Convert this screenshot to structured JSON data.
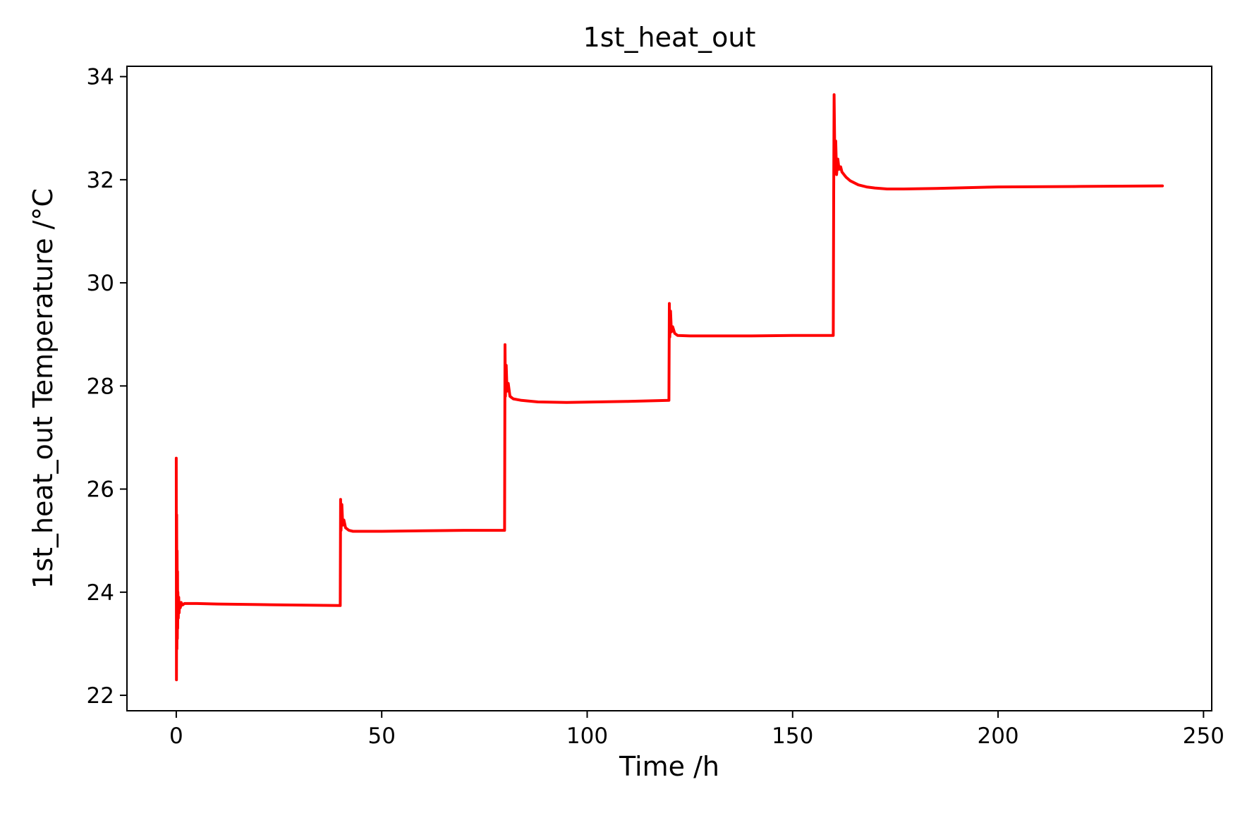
{
  "chart_data": {
    "type": "line",
    "title": "1st_heat_out",
    "xlabel": "Time /h",
    "ylabel": "1st_heat_out Temperature /°C",
    "xlim": [
      -12,
      252
    ],
    "ylim": [
      21.7,
      34.2
    ],
    "xticks": [
      0,
      50,
      100,
      150,
      200,
      250
    ],
    "yticks": [
      22,
      24,
      26,
      28,
      30,
      32,
      34
    ],
    "xtick_labels": [
      "0",
      "50",
      "100",
      "150",
      "200",
      "250"
    ],
    "ytick_labels": [
      "22",
      "24",
      "26",
      "28",
      "30",
      "32",
      "34"
    ],
    "grid": false,
    "legend": "none",
    "series": [
      {
        "color": "#ff0000",
        "x": [
          0,
          0.05,
          0.1,
          0.15,
          0.2,
          0.25,
          0.3,
          0.35,
          0.4,
          0.5,
          0.6,
          0.7,
          0.8,
          1.0,
          1.2,
          1.5,
          2,
          3,
          5,
          10,
          20,
          30,
          39.9,
          40,
          40.1,
          40.3,
          40.5,
          40.8,
          41.2,
          42,
          43,
          45,
          50,
          60,
          70,
          79.9,
          80,
          80.1,
          80.3,
          80.5,
          80.8,
          81.2,
          82,
          84,
          88,
          95,
          110,
          119.9,
          120,
          120.1,
          120.3,
          120.5,
          120.8,
          121.3,
          122,
          125,
          130,
          140,
          150,
          159.9,
          160,
          160.1,
          160.3,
          160.5,
          160.7,
          161,
          161.3,
          161.7,
          162,
          163,
          164,
          166,
          168,
          170,
          173,
          177,
          185,
          200,
          220,
          240
        ],
        "y": [
          26.6,
          22.3,
          25.5,
          22.9,
          24.8,
          23.1,
          24.4,
          23.3,
          24.0,
          23.5,
          23.9,
          23.6,
          23.8,
          23.7,
          23.8,
          23.75,
          23.78,
          23.78,
          23.78,
          23.77,
          23.76,
          23.75,
          23.74,
          25.8,
          25.2,
          25.7,
          25.3,
          25.4,
          25.25,
          25.2,
          25.18,
          25.18,
          25.18,
          25.19,
          25.2,
          25.2,
          28.8,
          27.8,
          28.4,
          27.9,
          28.05,
          27.8,
          27.75,
          27.72,
          27.69,
          27.68,
          27.7,
          27.72,
          29.6,
          28.95,
          29.45,
          29.05,
          29.15,
          29.02,
          28.98,
          28.97,
          28.97,
          28.97,
          28.98,
          28.98,
          31.7,
          33.65,
          32.2,
          32.75,
          32.1,
          32.4,
          32.2,
          32.25,
          32.15,
          32.05,
          31.98,
          31.9,
          31.86,
          31.84,
          31.82,
          31.82,
          31.83,
          31.86,
          31.87,
          31.88
        ]
      }
    ]
  }
}
